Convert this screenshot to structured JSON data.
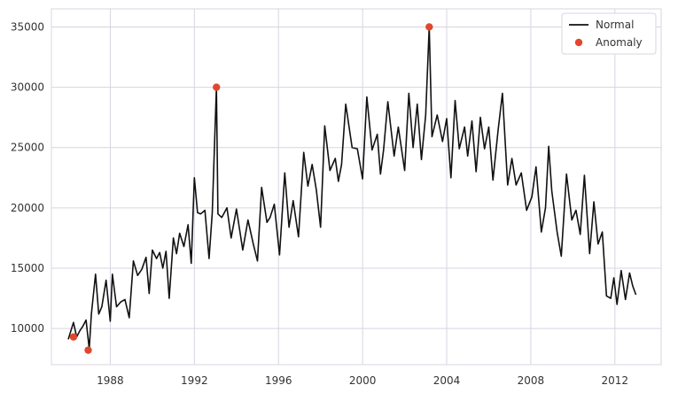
{
  "chart_data": {
    "type": "line",
    "title": "",
    "xlabel": "",
    "ylabel": "",
    "xlim": [
      1985.2,
      2014.2
    ],
    "ylim": [
      7000,
      36500
    ],
    "grid": true,
    "legend_position": "top-right",
    "x_ticks": [
      1988,
      1992,
      1996,
      2000,
      2004,
      2008,
      2012
    ],
    "x_tick_labels": [
      "1988",
      "1992",
      "1996",
      "2000",
      "2004",
      "2008",
      "2012"
    ],
    "y_ticks": [
      10000,
      15000,
      20000,
      25000,
      30000,
      35000
    ],
    "y_tick_labels": [
      "10000",
      "15000",
      "20000",
      "25000",
      "30000",
      "35000"
    ],
    "series": [
      {
        "name": "Normal",
        "kind": "line",
        "color": "#111111",
        "x": [
          1986.0,
          1986.25,
          1986.4,
          1986.55,
          1986.7,
          1986.85,
          1987.0,
          1987.1,
          1987.3,
          1987.45,
          1987.6,
          1987.8,
          1988.0,
          1988.1,
          1988.3,
          1988.5,
          1988.7,
          1988.9,
          1989.1,
          1989.3,
          1989.5,
          1989.7,
          1989.85,
          1990.0,
          1990.2,
          1990.35,
          1990.5,
          1990.65,
          1990.8,
          1991.0,
          1991.15,
          1991.3,
          1991.5,
          1991.7,
          1991.85,
          1992.0,
          1992.15,
          1992.3,
          1992.5,
          1992.7,
          1992.85,
          1993.05,
          1993.12,
          1993.3,
          1993.55,
          1993.75,
          1994.0,
          1994.3,
          1994.55,
          1994.8,
          1995.0,
          1995.2,
          1995.45,
          1995.6,
          1995.8,
          1996.05,
          1996.3,
          1996.5,
          1996.7,
          1996.95,
          1997.2,
          1997.4,
          1997.6,
          1997.8,
          1998.0,
          1998.2,
          1998.45,
          1998.7,
          1998.85,
          1999.0,
          1999.2,
          1999.5,
          1999.75,
          2000.0,
          2000.2,
          2000.45,
          2000.7,
          2000.85,
          2001.0,
          2001.2,
          2001.5,
          2001.7,
          2002.0,
          2002.2,
          2002.4,
          2002.6,
          2002.8,
          2003.0,
          2003.17,
          2003.3,
          2003.55,
          2003.8,
          2004.0,
          2004.2,
          2004.4,
          2004.6,
          2004.85,
          2005.0,
          2005.2,
          2005.4,
          2005.6,
          2005.8,
          2006.0,
          2006.2,
          2006.45,
          2006.65,
          2006.9,
          2007.1,
          2007.3,
          2007.55,
          2007.8,
          2008.05,
          2008.25,
          2008.5,
          2008.7,
          2008.85,
          2009.0,
          2009.25,
          2009.45,
          2009.7,
          2009.95,
          2010.15,
          2010.35,
          2010.55,
          2010.8,
          2011.0,
          2011.2,
          2011.4,
          2011.6,
          2011.8,
          2011.95,
          2012.1,
          2012.3,
          2012.5,
          2012.7,
          2012.85,
          2013.0
        ],
        "y": [
          9100,
          10500,
          9300,
          9800,
          10200,
          10700,
          8300,
          11200,
          14500,
          11200,
          11800,
          14000,
          10600,
          14500,
          11800,
          12200,
          12400,
          10900,
          15600,
          14400,
          14900,
          15900,
          12900,
          16500,
          15800,
          16300,
          15000,
          16400,
          12500,
          17500,
          16200,
          17900,
          16800,
          18600,
          15400,
          22500,
          19600,
          19500,
          19800,
          15800,
          19600,
          30000,
          19500,
          19200,
          20000,
          17500,
          19900,
          16500,
          19000,
          17000,
          15600,
          21700,
          18800,
          19200,
          20300,
          16100,
          22900,
          18400,
          20600,
          17600,
          24600,
          21800,
          23600,
          21500,
          18400,
          26800,
          23100,
          24100,
          22200,
          23600,
          28600,
          25000,
          24900,
          22400,
          29200,
          24800,
          26100,
          22800,
          24800,
          28800,
          24300,
          26700,
          23100,
          29500,
          25000,
          28600,
          24000,
          27700,
          35000,
          25900,
          27700,
          25500,
          27400,
          22500,
          28900,
          24900,
          26700,
          24300,
          27200,
          23000,
          27500,
          24900,
          26700,
          22300,
          26500,
          29500,
          21900,
          24100,
          21900,
          22900,
          19800,
          20900,
          23400,
          18000,
          20000,
          25100,
          21400,
          18000,
          16000,
          22800,
          19000,
          19800,
          17800,
          22700,
          16200,
          20500,
          17000,
          18000,
          12700,
          12500,
          14200,
          12000,
          14800,
          12400,
          14600,
          13500,
          12800
        ]
      },
      {
        "name": "Anomaly",
        "kind": "scatter",
        "color": "#e0482e",
        "x": [
          1986.25,
          1986.95,
          1993.05,
          2003.17
        ],
        "y": [
          9300,
          8200,
          30000,
          35000
        ]
      }
    ]
  }
}
